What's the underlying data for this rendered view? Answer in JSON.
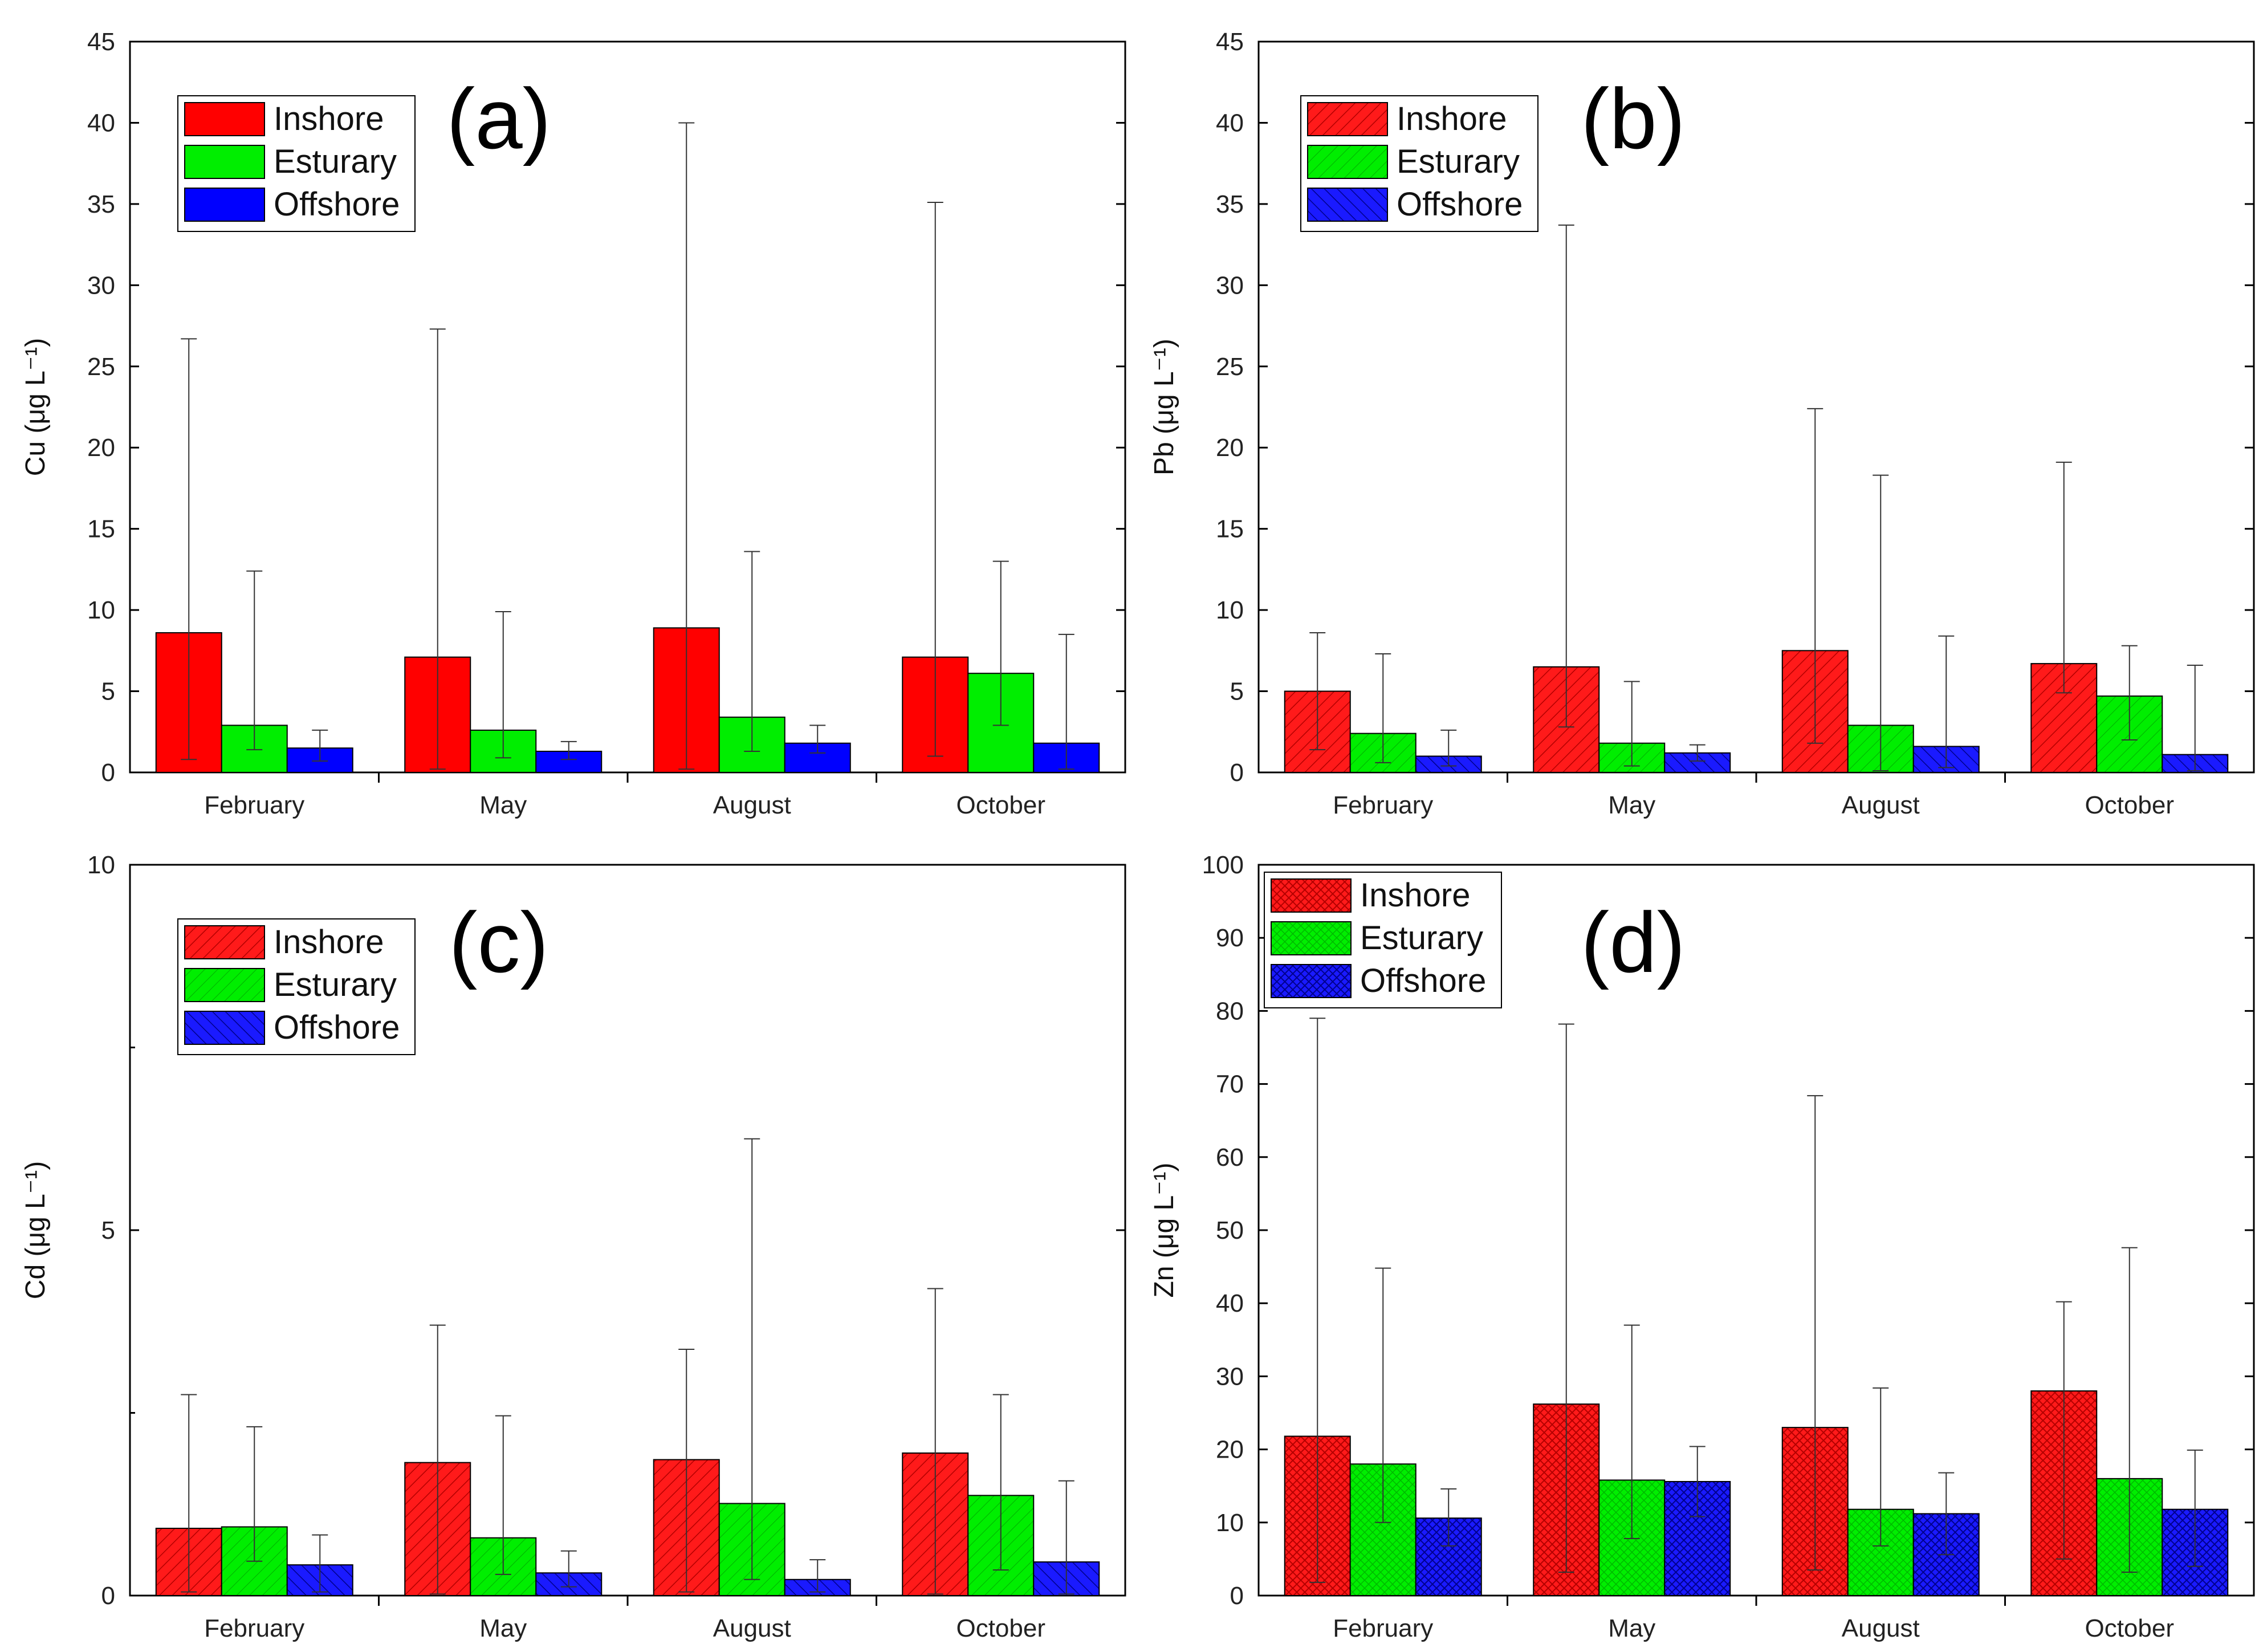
{
  "chart_data": [
    {
      "type": "bar",
      "panel_label": "(a)",
      "ylabel": "Cu (μg L⁻¹)",
      "ylim": [
        0,
        45
      ],
      "yticks": [
        0,
        5,
        10,
        15,
        20,
        25,
        30,
        35,
        40,
        45
      ],
      "categories": [
        "February",
        "May",
        "August",
        "October"
      ],
      "pattern": "solid",
      "series": [
        {
          "name": "Inshore",
          "color": "#ff0000",
          "values": [
            8.6,
            7.1,
            8.9,
            7.1
          ],
          "error_low": [
            0.8,
            0.2,
            0.2,
            1.0
          ],
          "error_high": [
            26.7,
            27.3,
            40.0,
            35.1
          ]
        },
        {
          "name": "Esturary",
          "color": "#00ee00",
          "values": [
            2.9,
            2.6,
            3.4,
            6.1
          ],
          "error_low": [
            1.4,
            0.9,
            1.3,
            2.9
          ],
          "error_high": [
            12.4,
            9.9,
            13.6,
            13.0
          ]
        },
        {
          "name": "Offshore",
          "color": "#0000ff",
          "values": [
            1.5,
            1.3,
            1.8,
            1.8
          ],
          "error_low": [
            0.7,
            0.8,
            1.2,
            0.2
          ],
          "error_high": [
            2.6,
            1.9,
            2.9,
            8.5
          ]
        }
      ]
    },
    {
      "type": "bar",
      "panel_label": "(b)",
      "ylabel": "Pb (μg L⁻¹)",
      "ylim": [
        0,
        45
      ],
      "yticks": [
        0,
        5,
        10,
        15,
        20,
        25,
        30,
        35,
        40,
        45
      ],
      "categories": [
        "February",
        "May",
        "August",
        "October"
      ],
      "pattern": "hatch",
      "series": [
        {
          "name": "Inshore",
          "color": "#ff0000",
          "values": [
            5.0,
            6.5,
            7.5,
            6.7
          ],
          "error_low": [
            1.4,
            2.8,
            1.8,
            4.9
          ],
          "error_high": [
            8.6,
            33.7,
            22.4,
            19.1
          ]
        },
        {
          "name": "Esturary",
          "color": "#00ee00",
          "values": [
            2.4,
            1.8,
            2.9,
            4.7
          ],
          "error_low": [
            0.6,
            0.4,
            0.1,
            2.0
          ],
          "error_high": [
            7.3,
            5.6,
            18.3,
            7.8
          ]
        },
        {
          "name": "Offshore",
          "color": "#0000ff",
          "values": [
            1.0,
            1.2,
            1.6,
            1.1
          ],
          "error_low": [
            0.4,
            0.7,
            0.3,
            0.1
          ],
          "error_high": [
            2.6,
            1.7,
            8.4,
            6.6
          ]
        }
      ]
    },
    {
      "type": "bar",
      "panel_label": "(c)",
      "ylabel": "Cd (μg L⁻¹)",
      "ylim": [
        0,
        10
      ],
      "yticks": [
        0,
        5,
        10
      ],
      "minor_yticks": [
        2.5,
        7.5
      ],
      "categories": [
        "February",
        "May",
        "August",
        "October"
      ],
      "pattern": "hatch",
      "series": [
        {
          "name": "Inshore",
          "color": "#ff0000",
          "values": [
            0.92,
            1.82,
            1.86,
            1.95
          ],
          "error_low": [
            0.05,
            0.02,
            0.05,
            0.02
          ],
          "error_high": [
            2.75,
            3.7,
            3.37,
            4.2
          ]
        },
        {
          "name": "Esturary",
          "color": "#00ee00",
          "values": [
            0.94,
            0.79,
            1.26,
            1.37
          ],
          "error_low": [
            0.47,
            0.29,
            0.22,
            0.35
          ],
          "error_high": [
            2.31,
            2.46,
            6.25,
            2.75
          ]
        },
        {
          "name": "Offshore",
          "color": "#0000ff",
          "values": [
            0.42,
            0.31,
            0.22,
            0.46
          ],
          "error_low": [
            0.05,
            0.12,
            0.05,
            0.02
          ],
          "error_high": [
            0.83,
            0.61,
            0.49,
            1.57
          ]
        }
      ]
    },
    {
      "type": "bar",
      "panel_label": "(d)",
      "ylabel": "Zn (μg L⁻¹)",
      "ylim": [
        0,
        100
      ],
      "yticks": [
        0,
        10,
        20,
        30,
        40,
        50,
        60,
        70,
        80,
        90,
        100
      ],
      "categories": [
        "February",
        "May",
        "August",
        "October"
      ],
      "pattern": "crosshatch",
      "series": [
        {
          "name": "Inshore",
          "color": "#ff0000",
          "values": [
            21.8,
            26.2,
            23.0,
            28.0
          ],
          "error_low": [
            1.8,
            3.2,
            3.5,
            5.0
          ],
          "error_high": [
            79.0,
            78.2,
            68.4,
            40.2
          ]
        },
        {
          "name": "Esturary",
          "color": "#00ee00",
          "values": [
            18.0,
            15.8,
            11.8,
            16.0
          ],
          "error_low": [
            10.0,
            7.8,
            6.8,
            3.2
          ],
          "error_high": [
            44.8,
            37.0,
            28.4,
            47.6
          ]
        },
        {
          "name": "Offshore",
          "color": "#0000ff",
          "values": [
            10.6,
            15.6,
            11.2,
            11.8
          ],
          "error_low": [
            6.8,
            10.8,
            5.6,
            4.0
          ],
          "error_high": [
            14.6,
            20.4,
            16.8,
            19.9
          ]
        }
      ]
    }
  ]
}
